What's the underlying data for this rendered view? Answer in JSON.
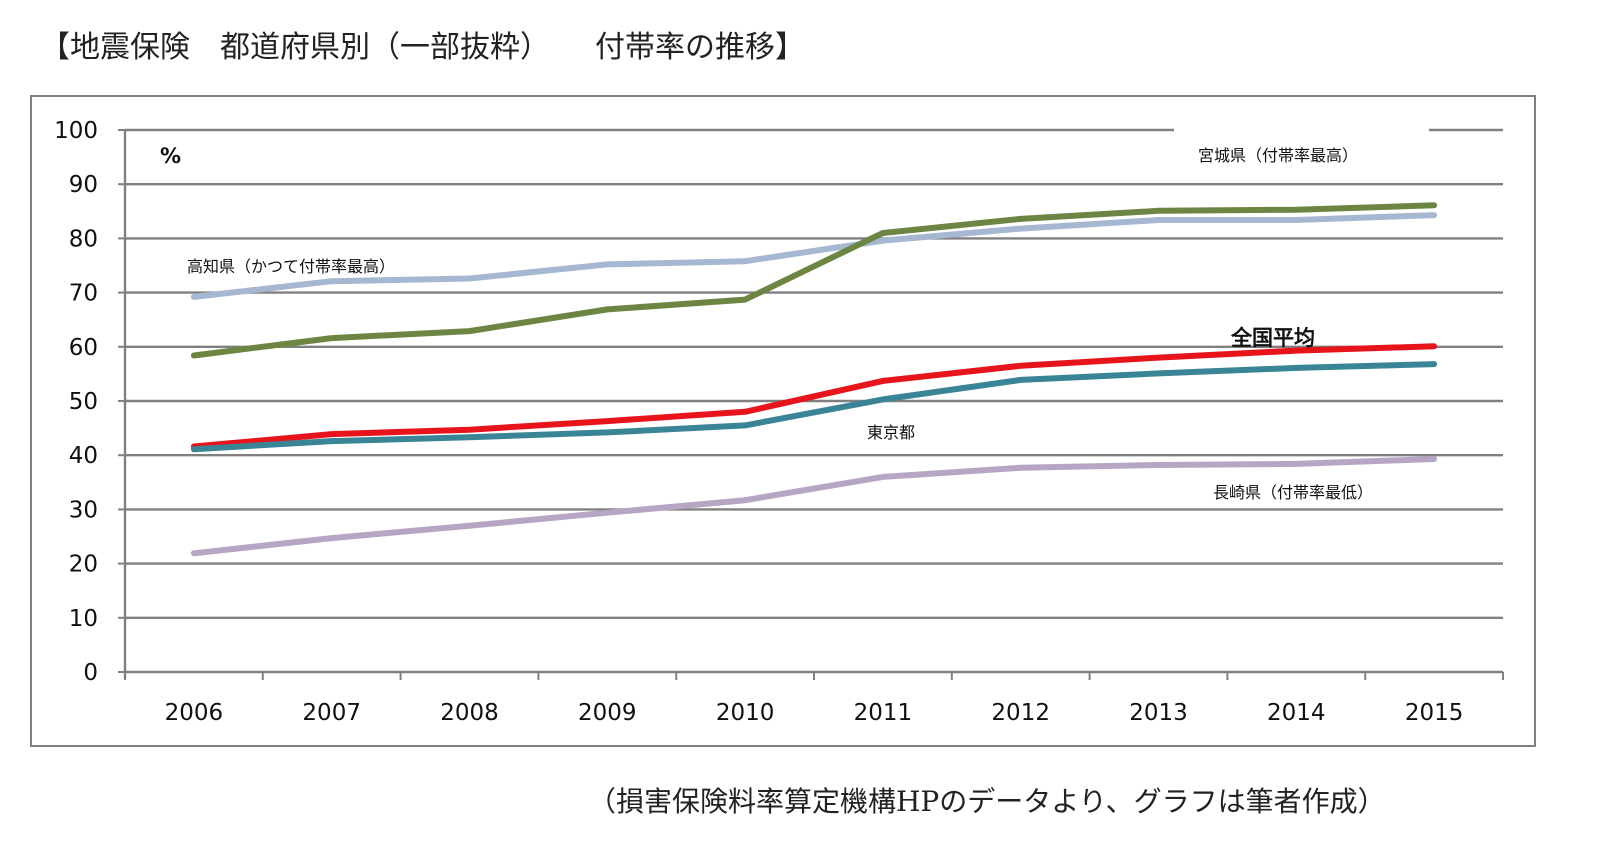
{
  "title": "【地震保険　都道府県別（一部抜粋）　　付帯率の推移】",
  "source": "（損害保険料率算定機構HPのデータより、グラフは筆者作成）",
  "chart_data": {
    "type": "line",
    "title": "",
    "xlabel": "",
    "ylabel": "%",
    "ylim": [
      0,
      100
    ],
    "yticks": [
      0,
      10,
      20,
      30,
      40,
      50,
      60,
      70,
      80,
      90,
      100
    ],
    "grid": true,
    "categories": [
      "2006",
      "2007",
      "2008",
      "2009",
      "2010",
      "2011",
      "2012",
      "2013",
      "2014",
      "2015"
    ],
    "series": [
      {
        "name": "高知県（かつて付帯率最高）",
        "color": "#a6b7d2",
        "values": [
          69.2,
          72.1,
          72.6,
          75.2,
          75.8,
          79.6,
          81.8,
          83.4,
          83.4,
          84.3
        ]
      },
      {
        "name": "宮城県（付帯率最高）",
        "color": "#6d8542",
        "values": [
          58.4,
          61.6,
          62.9,
          66.9,
          68.7,
          81.0,
          83.6,
          85.1,
          85.3,
          86.1
        ]
      },
      {
        "name": "全国平均",
        "color": "#e8141b",
        "values": [
          41.6,
          43.9,
          44.7,
          46.3,
          48.0,
          53.7,
          56.5,
          58.0,
          59.3,
          60.1
        ]
      },
      {
        "name": "東京都",
        "color": "#3a8595",
        "values": [
          41.1,
          42.6,
          43.3,
          44.2,
          45.5,
          50.3,
          53.9,
          55.1,
          56.1,
          56.8
        ]
      },
      {
        "name": "長崎県（付帯率最低）",
        "color": "#b6a6c3",
        "values": [
          21.9,
          24.7,
          27.0,
          29.4,
          31.7,
          36.0,
          37.7,
          38.2,
          38.4,
          39.3
        ]
      }
    ]
  }
}
